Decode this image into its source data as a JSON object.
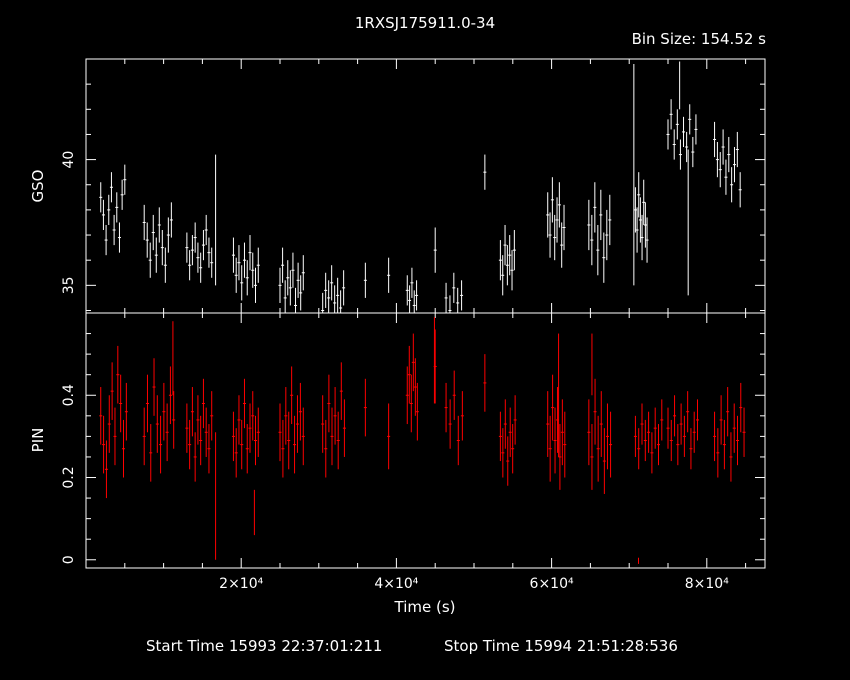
{
  "title": "1RXSJ175911.0-34",
  "bin_size_label": "Bin Size: 154.52 s",
  "footer": {
    "start": "Start Time 15993 22:37:01:211",
    "stop": "Stop Time 15994 21:51:28:536"
  },
  "colors": {
    "background": "#000000",
    "axes": "#ffffff",
    "gso_series": "#ffffff",
    "pin_series": "#ff0000"
  },
  "chart_data": [
    {
      "type": "scatter",
      "panel": "top",
      "xlabel": "Time (s)",
      "ylabel": "GSO",
      "xlim": [
        0,
        87500
      ],
      "ylim": [
        33.9,
        44.0
      ],
      "x_ticks": [
        20000,
        40000,
        60000,
        80000
      ],
      "x_tick_labels": [
        "2×10⁴",
        "4×10⁴",
        "6×10⁴",
        "8×10⁴"
      ],
      "y_ticks": [
        35,
        40
      ],
      "y_tick_labels": [
        "35",
        "40"
      ],
      "grid": false,
      "series": [
        {
          "segments": [
            {
              "x0": 1900,
              "x1": 5000,
              "ys": [
                38.5,
                37.8,
                36.8,
                38.0,
                38.9,
                37.2,
                38.1,
                36.9,
                38.6,
                39.2
              ],
              "err": 0.6
            },
            {
              "x0": 7500,
              "x1": 11000,
              "ys": [
                37.5,
                36.8,
                36.0,
                37.1,
                36.2,
                37.4,
                36.5,
                35.8,
                37.0,
                37.6
              ],
              "err": 0.7
            },
            {
              "x0": 13000,
              "x1": 16200,
              "ys": [
                36.5,
                35.8,
                36.4,
                36.9,
                36.1,
                35.7,
                36.6,
                37.2,
                36.3,
                35.9
              ],
              "err": 0.6
            },
            {
              "x0": 19000,
              "x1": 22200,
              "ys": [
                36.2,
                35.4,
                35.9,
                35.1,
                36.0,
                35.3,
                36.3,
                35.6,
                35.0,
                35.8
              ],
              "err": 0.7
            },
            {
              "x0": 25000,
              "x1": 28000,
              "ys": [
                35.0,
                35.8,
                34.5,
                35.3,
                34.9,
                35.6,
                34.2,
                35.2,
                34.7,
                35.5
              ],
              "err": 0.7
            },
            {
              "x0": 30500,
              "x1": 33200,
              "ys": [
                34.0,
                34.8,
                34.5,
                35.1,
                34.3,
                34.6,
                34.1,
                34.9
              ],
              "err": 0.7
            },
            {
              "x0": 36000,
              "x1": 36200,
              "ys": [
                35.2
              ],
              "err": 0.7
            },
            {
              "x0": 39000,
              "x1": 39200,
              "ys": [
                35.4
              ],
              "err": 0.7
            },
            {
              "x0": 41400,
              "x1": 42600,
              "ys": [
                34.8,
                34.4,
                35.1,
                34.2,
                34.6
              ],
              "err": 0.6
            },
            {
              "x0": 45000,
              "x1": 45100,
              "ys": [
                36.4
              ],
              "err": 0.9
            },
            {
              "x0": 46400,
              "x1": 48400,
              "ys": [
                34.5,
                34.0,
                34.9,
                34.3,
                34.6
              ],
              "err": 0.6
            },
            {
              "x0": 51400,
              "x1": 51500,
              "ys": [
                39.5
              ],
              "err": 0.7
            },
            {
              "x0": 53400,
              "x1": 55200,
              "ys": [
                36.0,
                35.4,
                36.6,
                35.8,
                36.2,
                35.6,
                36.4
              ],
              "err": 0.8
            },
            {
              "x0": 59500,
              "x1": 61600,
              "ys": [
                37.8,
                37.0,
                38.4,
                36.9,
                37.6,
                38.2,
                36.6,
                37.3
              ],
              "err": 0.9
            },
            {
              "x0": 64800,
              "x1": 67500,
              "ys": [
                37.4,
                36.8,
                38.1,
                36.4,
                37.8,
                36.1,
                37.0,
                37.6
              ],
              "err": 1.0
            },
            {
              "x0": 70800,
              "x1": 72300,
              "ys": [
                38.0,
                37.2,
                38.6,
                37.6,
                36.9,
                38.3,
                37.4,
                36.8
              ],
              "err": 0.9
            },
            {
              "x0": 75000,
              "x1": 78600,
              "ys": [
                41.0,
                41.8,
                40.6,
                41.4,
                40.2,
                41.1,
                40.5,
                41.6,
                40.3,
                41.2
              ],
              "err": 0.6
            },
            {
              "x0": 81000,
              "x1": 84300,
              "ys": [
                40.8,
                40.0,
                39.6,
                40.5,
                39.3,
                40.2,
                39.0,
                39.8,
                40.4,
                38.8
              ],
              "err": 0.7
            }
          ],
          "spikes": [
            {
              "x": 16700,
              "low": 35.0,
              "high": 40.2
            },
            {
              "x": 70600,
              "low": 35.0,
              "high": 43.8
            },
            {
              "x": 76500,
              "low": 42.0,
              "high": 43.9
            },
            {
              "x": 77600,
              "low": 34.6,
              "high": 40.4
            }
          ]
        }
      ]
    },
    {
      "type": "scatter",
      "panel": "bottom",
      "xlabel": "Time (s)",
      "ylabel": "PIN",
      "xlim": [
        0,
        87500
      ],
      "ylim": [
        -0.02,
        0.6
      ],
      "x_ticks": [
        20000,
        40000,
        60000,
        80000
      ],
      "x_tick_labels": [
        "2×10⁴",
        "4×10⁴",
        "6×10⁴",
        "8×10⁴"
      ],
      "y_ticks": [
        0,
        0.2,
        0.4
      ],
      "y_tick_labels": [
        "0",
        "0.2",
        "0.4"
      ],
      "grid": false,
      "series": [
        {
          "segments": [
            {
              "x0": 1900,
              "x1": 5200,
              "ys": [
                0.35,
                0.28,
                0.22,
                0.33,
                0.41,
                0.3,
                0.45,
                0.38,
                0.27,
                0.36
              ],
              "err": 0.07
            },
            {
              "x0": 7500,
              "x1": 11300,
              "ys": [
                0.3,
                0.38,
                0.26,
                0.42,
                0.33,
                0.28,
                0.36,
                0.31,
                0.4,
                0.34
              ],
              "err": 0.07
            },
            {
              "x0": 13000,
              "x1": 16200,
              "ys": [
                0.32,
                0.28,
                0.36,
                0.25,
                0.34,
                0.29,
                0.38,
                0.31,
                0.27,
                0.35
              ],
              "err": 0.06
            },
            {
              "x0": 19000,
              "x1": 22200,
              "ys": [
                0.3,
                0.26,
                0.34,
                0.28,
                0.38,
                0.27,
                0.32,
                0.35,
                0.29,
                0.31
              ],
              "err": 0.06
            },
            {
              "x0": 25000,
              "x1": 28000,
              "ys": [
                0.31,
                0.27,
                0.35,
                0.29,
                0.4,
                0.28,
                0.33,
                0.36,
                0.3
              ],
              "err": 0.07
            },
            {
              "x0": 30500,
              "x1": 33300,
              "ys": [
                0.33,
                0.27,
                0.38,
                0.3,
                0.35,
                0.29,
                0.41,
                0.32
              ],
              "err": 0.07
            },
            {
              "x0": 36000,
              "x1": 36200,
              "ys": [
                0.37
              ],
              "err": 0.07
            },
            {
              "x0": 39000,
              "x1": 39200,
              "ys": [
                0.3
              ],
              "err": 0.08
            },
            {
              "x0": 41400,
              "x1": 42700,
              "ys": [
                0.4,
                0.45,
                0.38,
                0.48,
                0.42,
                0.36
              ],
              "err": 0.07
            },
            {
              "x0": 45000,
              "x1": 45200,
              "ys": [
                0.47
              ],
              "err": 0.09
            },
            {
              "x0": 46400,
              "x1": 48500,
              "ys": [
                0.37,
                0.33,
                0.4,
                0.29,
                0.35
              ],
              "err": 0.06
            },
            {
              "x0": 51400,
              "x1": 51500,
              "ys": [
                0.43
              ],
              "err": 0.07
            },
            {
              "x0": 53400,
              "x1": 55300,
              "ys": [
                0.3,
                0.26,
                0.33,
                0.24,
                0.31,
                0.27,
                0.34
              ],
              "err": 0.06
            },
            {
              "x0": 59500,
              "x1": 61700,
              "ys": [
                0.33,
                0.27,
                0.37,
                0.29,
                0.34,
                0.25,
                0.31,
                0.28
              ],
              "err": 0.08
            },
            {
              "x0": 64800,
              "x1": 67600,
              "ys": [
                0.31,
                0.25,
                0.36,
                0.27,
                0.33,
                0.24,
                0.3,
                0.28
              ],
              "err": 0.08
            },
            {
              "x0": 70800,
              "x1": 74200,
              "ys": [
                0.3,
                0.27,
                0.33,
                0.29,
                0.31,
                0.26,
                0.32,
                0.28,
                0.34
              ],
              "err": 0.05
            },
            {
              "x0": 75000,
              "x1": 78800,
              "ys": [
                0.32,
                0.29,
                0.35,
                0.28,
                0.33,
                0.3,
                0.36,
                0.27,
                0.31,
                0.34
              ],
              "err": 0.05
            },
            {
              "x0": 81000,
              "x1": 84800,
              "ys": [
                0.3,
                0.26,
                0.34,
                0.28,
                0.36,
                0.25,
                0.32,
                0.29,
                0.37,
                0.31
              ],
              "err": 0.06
            }
          ],
          "spikes": [
            {
              "x": 16700,
              "low": 0.0,
              "high": 0.31
            },
            {
              "x": 11200,
              "low": 0.4,
              "high": 0.58
            },
            {
              "x": 21700,
              "low": 0.06,
              "high": 0.17
            },
            {
              "x": 44900,
              "low": 0.38,
              "high": 0.59
            },
            {
              "x": 60900,
              "low": 0.25,
              "high": 0.55
            },
            {
              "x": 65200,
              "low": 0.4,
              "high": 0.55
            },
            {
              "x": 71200,
              "low": -0.01,
              "high": 0.005
            }
          ]
        }
      ]
    }
  ]
}
